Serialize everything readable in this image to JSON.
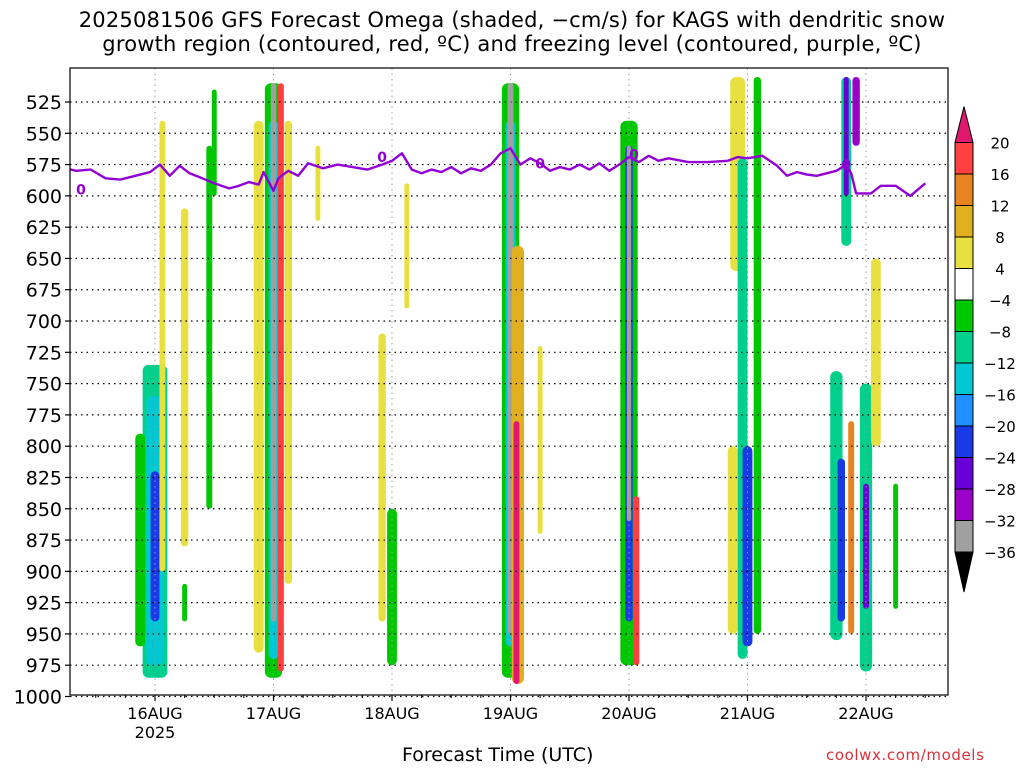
{
  "header": {
    "title_line1": "2025081506 GFS Forecast Omega (shaded, −cm/s) for KAGS with dendritic snow",
    "title_line2": "growth region (contoured, red, ºC) and freezing level (contoured, purple, ºC)"
  },
  "footer": {
    "xlabel": "Forecast Time (UTC)",
    "credit": "coolwx.com/models"
  },
  "chart_data": {
    "type": "heatmap",
    "title": "2025081506 GFS Forecast Omega (shaded, −cm/s) for KAGS with dendritic snow growth region (contoured, red, ºC) and freezing level (contoured, purple, ºC)",
    "xlabel": "Forecast Time (UTC)",
    "ylabel": "",
    "x_range_hours": [
      -19,
      156
    ],
    "x_ticks": [
      {
        "hour": 0,
        "label": "16AUG",
        "sublabel": "2025"
      },
      {
        "hour": 24,
        "label": "17AUG"
      },
      {
        "hour": 48,
        "label": "18AUG"
      },
      {
        "hour": 72,
        "label": "19AUG"
      },
      {
        "hour": 96,
        "label": "20AUG"
      },
      {
        "hour": 120,
        "label": "21AUG"
      },
      {
        "hour": 144,
        "label": "22AUG"
      }
    ],
    "y_axis": {
      "type": "pressure_hPa",
      "range": [
        1012,
        505
      ],
      "reversed": true,
      "ticks": [
        525,
        550,
        575,
        600,
        625,
        650,
        675,
        700,
        725,
        750,
        775,
        800,
        825,
        850,
        875,
        900,
        925,
        950,
        975,
        1000
      ]
    },
    "grid": true,
    "colorbar": {
      "levels": [
        -36,
        -32,
        -28,
        -24,
        -20,
        -16,
        -12,
        -8,
        -4,
        4,
        8,
        12,
        16,
        20
      ],
      "labels": [
        "-36",
        "-32",
        "-28",
        "-24",
        "-20",
        "-16",
        "-12",
        "-8",
        "-4",
        "4",
        "8",
        "12",
        "16",
        "20"
      ],
      "colors": [
        "#000000",
        "#a0a0a0",
        "#9a00c8",
        "#6a00d8",
        "#1a3ae8",
        "#1e90ff",
        "#00c8d2",
        "#00d08c",
        "#00c800",
        "#ffffff",
        "#e8e040",
        "#e0b020",
        "#e88420",
        "#ff4040",
        "#e0196e"
      ]
    },
    "freezing_level_label": "0",
    "freezing_level": [
      {
        "h": -19,
        "p": 577
      },
      {
        "h": -16,
        "p": 580
      },
      {
        "h": -13,
        "p": 579
      },
      {
        "h": -10,
        "p": 586
      },
      {
        "h": -7,
        "p": 587
      },
      {
        "h": -4,
        "p": 584
      },
      {
        "h": -1,
        "p": 581
      },
      {
        "h": 1,
        "p": 575
      },
      {
        "h": 3,
        "p": 584
      },
      {
        "h": 5,
        "p": 576
      },
      {
        "h": 7,
        "p": 582
      },
      {
        "h": 9,
        "p": 585
      },
      {
        "h": 12,
        "p": 590
      },
      {
        "h": 15,
        "p": 594
      },
      {
        "h": 17,
        "p": 592
      },
      {
        "h": 19,
        "p": 589
      },
      {
        "h": 21,
        "p": 591
      },
      {
        "h": 22,
        "p": 581
      },
      {
        "h": 24,
        "p": 596
      },
      {
        "h": 25,
        "p": 586
      },
      {
        "h": 27,
        "p": 580
      },
      {
        "h": 29,
        "p": 584
      },
      {
        "h": 31,
        "p": 574
      },
      {
        "h": 34,
        "p": 578
      },
      {
        "h": 37,
        "p": 575
      },
      {
        "h": 40,
        "p": 577
      },
      {
        "h": 43,
        "p": 579
      },
      {
        "h": 46,
        "p": 575
      },
      {
        "h": 48,
        "p": 572
      },
      {
        "h": 50,
        "p": 566
      },
      {
        "h": 52,
        "p": 579
      },
      {
        "h": 54,
        "p": 582
      },
      {
        "h": 56,
        "p": 579
      },
      {
        "h": 58,
        "p": 581
      },
      {
        "h": 60,
        "p": 577
      },
      {
        "h": 62,
        "p": 582
      },
      {
        "h": 64,
        "p": 578
      },
      {
        "h": 66,
        "p": 580
      },
      {
        "h": 68,
        "p": 575
      },
      {
        "h": 70,
        "p": 566
      },
      {
        "h": 72,
        "p": 562
      },
      {
        "h": 74,
        "p": 575
      },
      {
        "h": 76,
        "p": 570
      },
      {
        "h": 78,
        "p": 574
      },
      {
        "h": 80,
        "p": 580
      },
      {
        "h": 82,
        "p": 577
      },
      {
        "h": 84,
        "p": 579
      },
      {
        "h": 86,
        "p": 575
      },
      {
        "h": 88,
        "p": 579
      },
      {
        "h": 90,
        "p": 574
      },
      {
        "h": 92,
        "p": 580
      },
      {
        "h": 94,
        "p": 575
      },
      {
        "h": 96,
        "p": 569
      },
      {
        "h": 98,
        "p": 573
      },
      {
        "h": 100,
        "p": 568
      },
      {
        "h": 102,
        "p": 572
      },
      {
        "h": 104,
        "p": 570
      },
      {
        "h": 108,
        "p": 573
      },
      {
        "h": 112,
        "p": 573
      },
      {
        "h": 116,
        "p": 572
      },
      {
        "h": 118,
        "p": 569
      },
      {
        "h": 120,
        "p": 570
      },
      {
        "h": 123,
        "p": 568
      },
      {
        "h": 126,
        "p": 576
      },
      {
        "h": 128,
        "p": 584
      },
      {
        "h": 130,
        "p": 581
      },
      {
        "h": 132,
        "p": 583
      },
      {
        "h": 134,
        "p": 584
      },
      {
        "h": 136,
        "p": 582
      },
      {
        "h": 138,
        "p": 580
      },
      {
        "h": 140,
        "p": 575
      },
      {
        "h": 141,
        "p": 582
      },
      {
        "h": 142,
        "p": 598
      },
      {
        "h": 145,
        "p": 598
      },
      {
        "h": 147,
        "p": 592
      },
      {
        "h": 150,
        "p": 592
      },
      {
        "h": 153,
        "p": 600
      },
      {
        "h": 156,
        "p": 590
      }
    ],
    "terrain_top_hPa": 1005,
    "omega_cells": [
      {
        "h": 0,
        "w": 5,
        "p": [
          735,
          985
        ],
        "v": -12
      },
      {
        "h": 0,
        "w": 3.5,
        "p": [
          760,
          975
        ],
        "v": -16
      },
      {
        "h": 0,
        "w": 1.8,
        "p": [
          820,
          940
        ],
        "v": -24
      },
      {
        "h": -3,
        "w": 2,
        "p": [
          790,
          960
        ],
        "v": -8
      },
      {
        "h": 1.5,
        "w": 1.2,
        "p": [
          540,
          900
        ],
        "v": 4
      },
      {
        "h": 6,
        "w": 1.5,
        "p": [
          610,
          880
        ],
        "v": 4
      },
      {
        "h": 6,
        "w": 1,
        "p": [
          910,
          940
        ],
        "v": -8
      },
      {
        "h": 11,
        "w": 1.2,
        "p": [
          560,
          850
        ],
        "v": -8
      },
      {
        "h": 12,
        "w": 1,
        "p": [
          515,
          600
        ],
        "v": -8
      },
      {
        "h": 21,
        "w": 2,
        "p": [
          540,
          965
        ],
        "v": 4
      },
      {
        "h": 24,
        "w": 3.5,
        "p": [
          510,
          985
        ],
        "v": -8
      },
      {
        "h": 24,
        "w": 2,
        "p": [
          540,
          970
        ],
        "v": -16
      },
      {
        "h": 24,
        "w": 1.1,
        "p": [
          510,
          940
        ],
        "v": -36
      },
      {
        "h": 25.5,
        "w": 1.2,
        "p": [
          510,
          980
        ],
        "v": 16
      },
      {
        "h": 27,
        "w": 1.5,
        "p": [
          540,
          910
        ],
        "v": 4
      },
      {
        "h": 33,
        "w": 1,
        "p": [
          560,
          620
        ],
        "v": 4
      },
      {
        "h": 46,
        "w": 1.5,
        "p": [
          710,
          940
        ],
        "v": 4
      },
      {
        "h": 48,
        "w": 2,
        "p": [
          850,
          975
        ],
        "v": -8
      },
      {
        "h": 51,
        "w": 1,
        "p": [
          590,
          690
        ],
        "v": 4
      },
      {
        "h": 72,
        "w": 3.5,
        "p": [
          510,
          985
        ],
        "v": -8
      },
      {
        "h": 72,
        "w": 2,
        "p": [
          540,
          960
        ],
        "v": -16
      },
      {
        "h": 72,
        "w": 1.2,
        "p": [
          510,
          950
        ],
        "v": -36
      },
      {
        "h": 73.5,
        "w": 2.5,
        "p": [
          640,
          990
        ],
        "v": 8
      },
      {
        "h": 73.2,
        "w": 1.2,
        "p": [
          780,
          990
        ],
        "v": 20
      },
      {
        "h": 78,
        "w": 1,
        "p": [
          720,
          870
        ],
        "v": 4
      },
      {
        "h": 96,
        "w": 3.5,
        "p": [
          540,
          975
        ],
        "v": -8
      },
      {
        "h": 96,
        "w": 1.5,
        "p": [
          560,
          940
        ],
        "v": -24
      },
      {
        "h": 96,
        "w": 0.9,
        "p": [
          560,
          860
        ],
        "v": -36
      },
      {
        "h": 97.5,
        "w": 1.2,
        "p": [
          840,
          975
        ],
        "v": 16
      },
      {
        "h": 118,
        "w": 3,
        "p": [
          505,
          660
        ],
        "v": 4
      },
      {
        "h": 119,
        "w": 2,
        "p": [
          570,
          970
        ],
        "v": -12
      },
      {
        "h": 120,
        "w": 2,
        "p": [
          800,
          960
        ],
        "v": -24
      },
      {
        "h": 122,
        "w": 1.5,
        "p": [
          505,
          950
        ],
        "v": -8
      },
      {
        "h": 117,
        "w": 2,
        "p": [
          800,
          950
        ],
        "v": 4
      },
      {
        "h": 138,
        "w": 2.5,
        "p": [
          740,
          955
        ],
        "v": -12
      },
      {
        "h": 140,
        "w": 2,
        "p": [
          505,
          640
        ],
        "v": -12
      },
      {
        "h": 140,
        "w": 1,
        "p": [
          505,
          600
        ],
        "v": -28
      },
      {
        "h": 142,
        "w": 1.5,
        "p": [
          505,
          560
        ],
        "v": -32
      },
      {
        "h": 139,
        "w": 1.5,
        "p": [
          810,
          940
        ],
        "v": -24
      },
      {
        "h": 141,
        "w": 1.2,
        "p": [
          780,
          950
        ],
        "v": 12
      },
      {
        "h": 144,
        "w": 2.5,
        "p": [
          750,
          980
        ],
        "v": -12
      },
      {
        "h": 144,
        "w": 1.2,
        "p": [
          830,
          930
        ],
        "v": -28
      },
      {
        "h": 146,
        "w": 2,
        "p": [
          650,
          800
        ],
        "v": 4
      },
      {
        "h": 150,
        "w": 1,
        "p": [
          830,
          930
        ],
        "v": -8
      }
    ]
  }
}
